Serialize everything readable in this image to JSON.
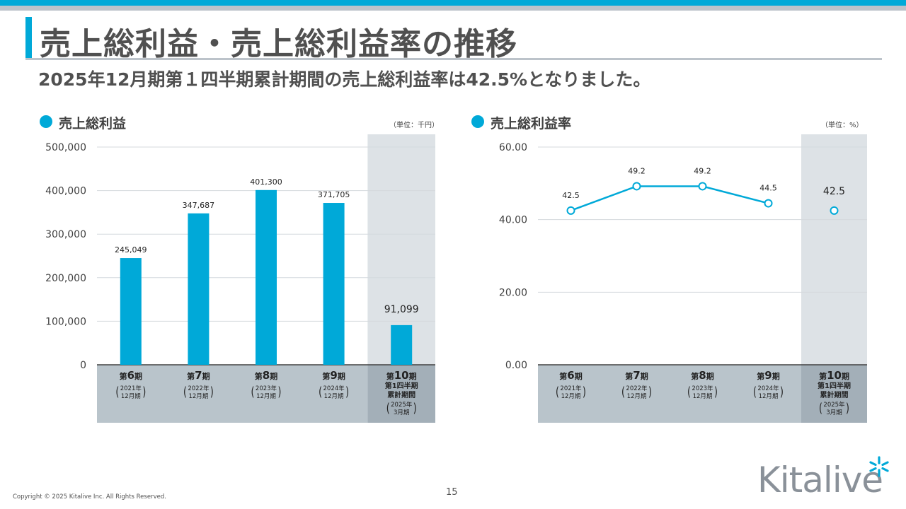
{
  "header": {
    "title": "売上総利益・売上総利益率の推移",
    "subtitle": "2025年12月期第１四半期累計期間の売上総利益率は42.5%となりました。"
  },
  "colors": {
    "accent": "#00a9d8",
    "gray_bar": "#bcc3ca",
    "highlight_bg": "#dde2e6",
    "category_bg": "#b9c4cb",
    "category_bg_highlight": "#a3afb8"
  },
  "footer": {
    "copyright": "Copyright © 2025 Kitalive Inc. All Rights Reserved.",
    "page_number": "15",
    "logo_text": "Kitalive"
  },
  "categories": [
    {
      "period_prefix": "第",
      "period_num": "6",
      "period_suffix": "期",
      "year": "2021年",
      "month": "12月期"
    },
    {
      "period_prefix": "第",
      "period_num": "7",
      "period_suffix": "期",
      "year": "2022年",
      "month": "12月期"
    },
    {
      "period_prefix": "第",
      "period_num": "8",
      "period_suffix": "期",
      "year": "2023年",
      "month": "12月期"
    },
    {
      "period_prefix": "第",
      "period_num": "9",
      "period_suffix": "期",
      "year": "2024年",
      "month": "12月期"
    },
    {
      "period_prefix": "第",
      "period_num": "10",
      "period_suffix": "期",
      "line2": "第1四半期",
      "line3": "累計期間",
      "year": "2025年",
      "month": "3月期"
    }
  ],
  "chart_data": [
    {
      "type": "bar",
      "title": "売上総利益",
      "unit_label": "（単位：千円）",
      "categories": [
        "第6期",
        "第7期",
        "第8期",
        "第9期",
        "第10期 第1四半期累計期間"
      ],
      "values": [
        245049,
        347687,
        401300,
        371705,
        91099
      ],
      "value_labels": [
        "245,049",
        "347,687",
        "401,300",
        "371,705",
        "91,099"
      ],
      "ylim": [
        0,
        500000
      ],
      "yticks": [
        0,
        100000,
        200000,
        300000,
        400000,
        500000
      ],
      "ytick_labels": [
        "0",
        "100,000",
        "200,000",
        "300,000",
        "400,000",
        "500,000"
      ],
      "grid": true,
      "highlight_last": true
    },
    {
      "type": "line",
      "title": "売上総利益率",
      "unit_label": "（単位：%）",
      "categories": [
        "第6期",
        "第7期",
        "第8期",
        "第9期",
        "第10期 第1四半期累計期間"
      ],
      "values": [
        42.5,
        49.2,
        49.2,
        44.5,
        42.5
      ],
      "value_labels": [
        "42.5",
        "49.2",
        "49.2",
        "44.5",
        "42.5"
      ],
      "ylim": [
        0,
        60
      ],
      "yticks": [
        0,
        20,
        40,
        60
      ],
      "ytick_labels": [
        "0.00",
        "20.00",
        "40.00",
        "60.00"
      ],
      "grid": true,
      "highlight_last": true,
      "last_point_unconnected": true
    }
  ]
}
